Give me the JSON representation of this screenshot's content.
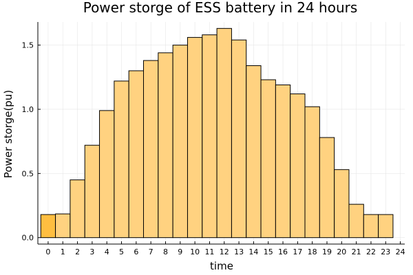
{
  "chart_data": {
    "type": "bar",
    "title": "Power storge of ESS battery in 24 hours",
    "xlabel": "time",
    "ylabel": "Power storge(pu)",
    "categories": [
      "0",
      "1",
      "2",
      "3",
      "4",
      "5",
      "6",
      "7",
      "8",
      "9",
      "10",
      "11",
      "12",
      "13",
      "14",
      "15",
      "16",
      "17",
      "18",
      "19",
      "20",
      "21",
      "22",
      "23"
    ],
    "values": [
      0.18,
      0.185,
      0.45,
      0.72,
      0.99,
      1.22,
      1.3,
      1.38,
      1.44,
      1.5,
      1.56,
      1.58,
      1.63,
      1.54,
      1.34,
      1.23,
      1.19,
      1.12,
      1.02,
      0.78,
      0.53,
      0.26,
      0.18,
      0.18
    ],
    "xticks": [
      "0",
      "1",
      "2",
      "3",
      "4",
      "5",
      "6",
      "7",
      "8",
      "9",
      "10",
      "11",
      "12",
      "13",
      "14",
      "15",
      "16",
      "17",
      "18",
      "19",
      "20",
      "21",
      "22",
      "23",
      "24"
    ],
    "yticks": [
      "0.0",
      "0.5",
      "1.0",
      "1.5"
    ],
    "xlim": [
      -0.7,
      24.3
    ],
    "ylim": [
      -0.05,
      1.68
    ],
    "grid": true,
    "bar_color": "#ffd280",
    "highlight_color": "#ffbe40",
    "highlight_index": 0
  }
}
